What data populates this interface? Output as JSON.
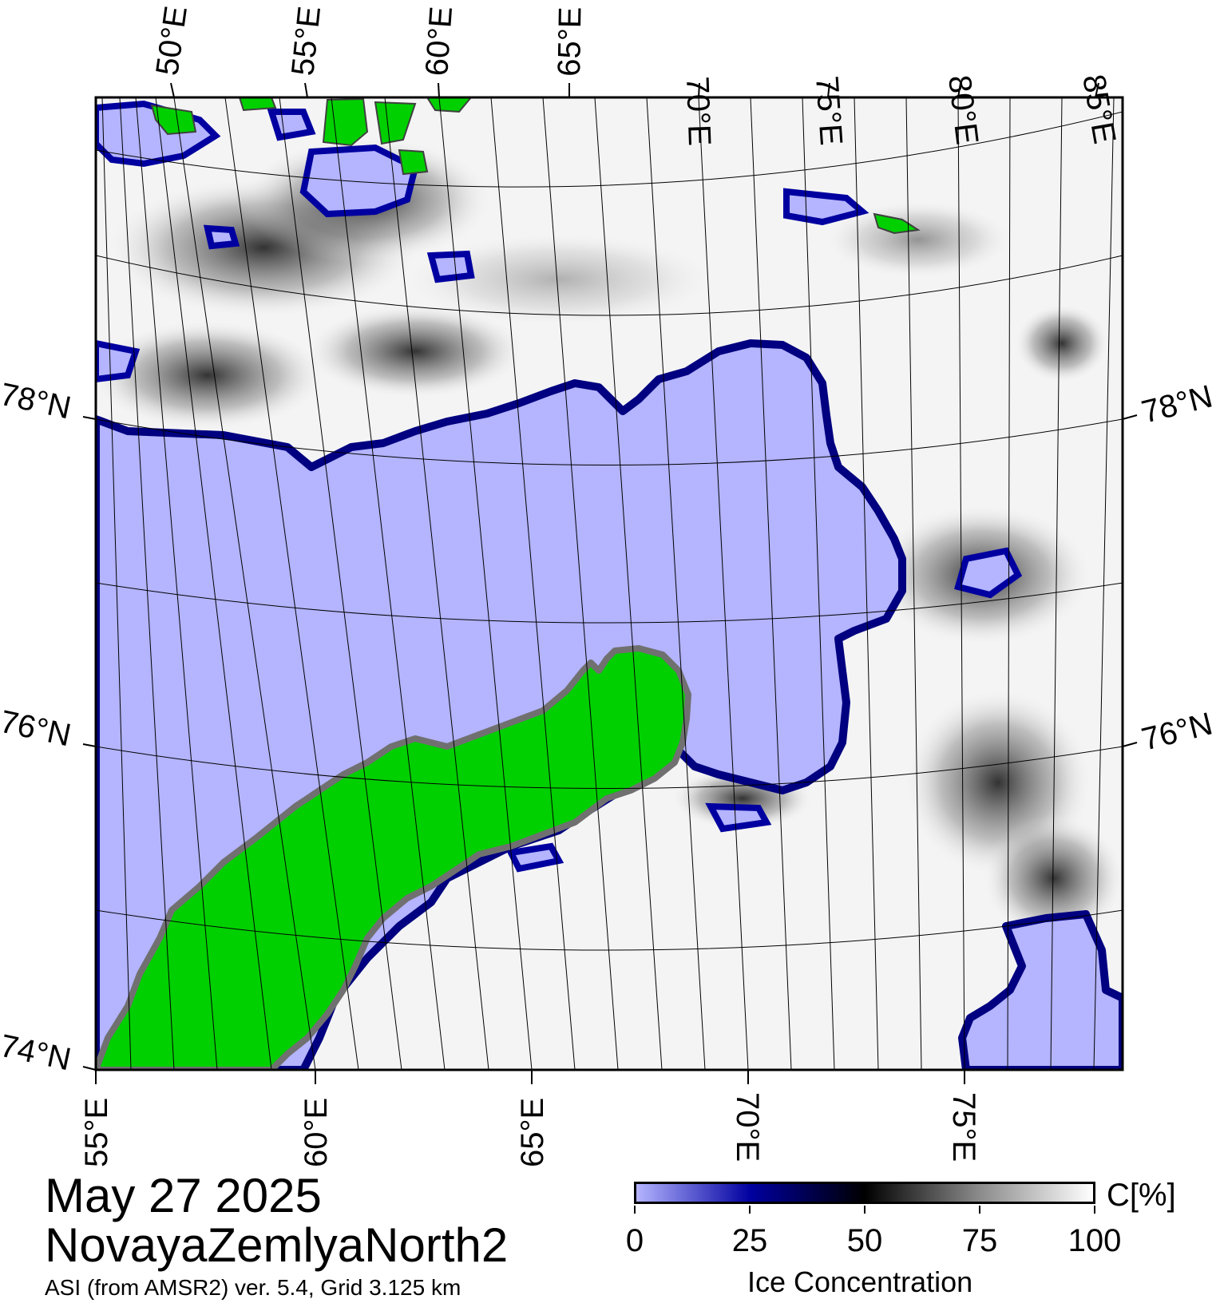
{
  "map": {
    "title_date": "May 27 2025",
    "region_name": "NovayaZemlyaNorth2",
    "product_info": "ASI (from AMSR2) ver. 5.4,  Grid 3.125 km",
    "top_lon_labels": [
      "50°E",
      "55°E",
      "60°E",
      "65°E",
      "70°E",
      "75°E",
      "80°E",
      "85°E"
    ],
    "bottom_lon_labels": [
      "55°E",
      "60°E",
      "65°E",
      "70°E",
      "75°E"
    ],
    "left_lat_labels": [
      "78°N",
      "76°N",
      "74°N"
    ],
    "right_lat_labels": [
      "78°N",
      "76°N"
    ],
    "colors": {
      "land": "#00d000",
      "open_water": "#b4b4ff",
      "ice_low": "#1a1aa0",
      "ice_mid": "#000000",
      "ice_high": "#ffffff",
      "coast_mask": "#808080"
    }
  },
  "colorbar": {
    "title": "Ice Concentration",
    "unit": "C[%]",
    "ticks": [
      "0",
      "25",
      "50",
      "75",
      "100"
    ],
    "colors": [
      "#b4b4ff",
      "#0000c0",
      "#000040",
      "#000000",
      "#808080",
      "#ffffff"
    ]
  }
}
